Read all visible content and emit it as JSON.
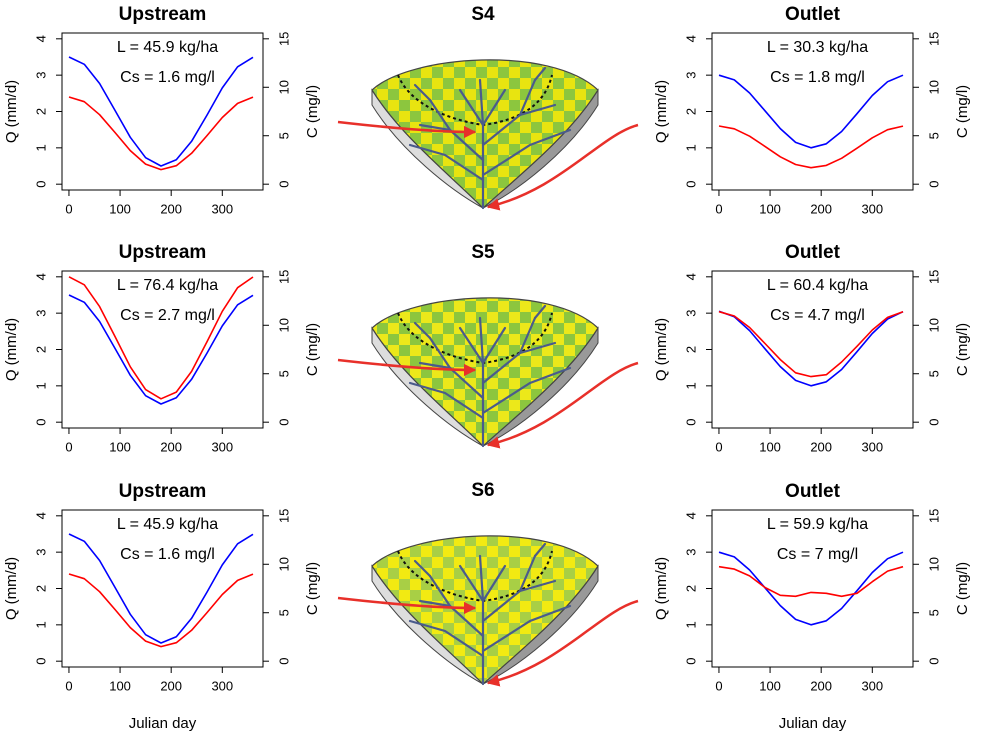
{
  "chart_data": [
    {
      "type": "line",
      "title": "Upstream",
      "annotations": [
        "L = 45.9 kg/ha",
        "Cs = 1.6 mg/l"
      ],
      "ylabel": "Q (mm/d)",
      "y2label": "C (mg/l)",
      "x": [
        0,
        30,
        60,
        90,
        120,
        150,
        180,
        210,
        240,
        270,
        300,
        330,
        360
      ],
      "series": [
        {
          "color": "#0000ff",
          "values": [
            3.5,
            3.3,
            2.77,
            2.03,
            1.29,
            0.73,
            0.5,
            0.67,
            1.18,
            1.9,
            2.65,
            3.23,
            3.49
          ]
        },
        {
          "color": "#ff0000",
          "axis": "y2",
          "values": [
            9.0,
            8.51,
            7.17,
            5.33,
            3.47,
            2.07,
            1.5,
            1.91,
            3.19,
            5.01,
            6.88,
            8.34,
            8.99
          ]
        }
      ],
      "xlim": [
        -13.6,
        379.6
      ],
      "xticks": [
        0,
        100,
        200,
        300
      ],
      "ylim": [
        -0.16,
        4.16
      ],
      "yticks": [
        0,
        1,
        2,
        3,
        4
      ],
      "y2lim": [
        -0.6,
        15.6
      ],
      "y2ticks": [
        0,
        5,
        10,
        15
      ]
    },
    {
      "type": "line",
      "title": "Outlet",
      "annotations": [
        "L = 30.3 kg/ha",
        "Cs = 1.8 mg/l"
      ],
      "ylabel": "Q (mm/d)",
      "y2label": "C (mg/l)",
      "x": [
        0,
        30,
        60,
        90,
        120,
        150,
        180,
        210,
        240,
        270,
        300,
        330,
        360
      ],
      "series": [
        {
          "color": "#0000ff",
          "values": [
            3.0,
            2.87,
            2.51,
            2.02,
            1.53,
            1.15,
            1.0,
            1.11,
            1.45,
            1.94,
            2.44,
            2.82,
            3.0
          ]
        },
        {
          "color": "#ff0000",
          "axis": "y2",
          "values": [
            6.0,
            5.72,
            4.95,
            3.9,
            2.83,
            2.03,
            1.7,
            1.94,
            2.67,
            3.71,
            4.79,
            5.62,
            5.99
          ]
        }
      ],
      "xlim": [
        -13.6,
        379.6
      ],
      "xticks": [
        0,
        100,
        200,
        300
      ],
      "ylim": [
        -0.16,
        4.16
      ],
      "yticks": [
        0,
        1,
        2,
        3,
        4
      ],
      "y2lim": [
        -0.6,
        15.6
      ],
      "y2ticks": [
        0,
        5,
        10,
        15
      ]
    },
    {
      "type": "line",
      "title": "Upstream",
      "annotations": [
        "L = 76.4 kg/ha",
        "Cs = 2.7 mg/l"
      ],
      "ylabel": "Q (mm/d)",
      "y2label": "C (mg/l)",
      "x": [
        0,
        30,
        60,
        90,
        120,
        150,
        180,
        210,
        240,
        270,
        300,
        330,
        360
      ],
      "series": [
        {
          "color": "#0000ff",
          "values": [
            3.5,
            3.3,
            2.77,
            2.03,
            1.29,
            0.73,
            0.5,
            0.67,
            1.18,
            1.9,
            2.65,
            3.23,
            3.49
          ]
        },
        {
          "color": "#ff0000",
          "axis": "y2",
          "values": [
            15.0,
            14.18,
            11.93,
            8.84,
            5.71,
            3.36,
            2.41,
            3.1,
            5.24,
            8.29,
            11.44,
            13.88,
            14.98
          ]
        }
      ],
      "xlim": [
        -13.6,
        379.6
      ],
      "xticks": [
        0,
        100,
        200,
        300
      ],
      "ylim": [
        -0.16,
        4.16
      ],
      "yticks": [
        0,
        1,
        2,
        3,
        4
      ],
      "y2lim": [
        -0.6,
        15.6
      ],
      "y2ticks": [
        0,
        5,
        10,
        15
      ]
    },
    {
      "type": "line",
      "title": "Outlet",
      "annotations": [
        "L = 60.4 kg/ha",
        "Cs = 4.7 mg/l"
      ],
      "ylabel": "Q (mm/d)",
      "y2label": "C (mg/l)",
      "x": [
        0,
        30,
        60,
        90,
        120,
        150,
        180,
        210,
        240,
        270,
        300,
        330,
        360
      ],
      "series": [
        {
          "color": "#0000ff",
          "values": [
            3.05,
            2.9,
            2.52,
            2.02,
            1.53,
            1.15,
            1.0,
            1.11,
            1.45,
            1.94,
            2.44,
            2.84,
            3.04
          ]
        },
        {
          "color": "#ff0000",
          "axis": "y2",
          "values": [
            11.4,
            10.96,
            9.77,
            8.12,
            6.46,
            5.1,
            4.7,
            4.9,
            6.21,
            7.83,
            9.51,
            10.81,
            11.39
          ]
        }
      ],
      "xlim": [
        -13.6,
        379.6
      ],
      "xticks": [
        0,
        100,
        200,
        300
      ],
      "ylim": [
        -0.16,
        4.16
      ],
      "yticks": [
        0,
        1,
        2,
        3,
        4
      ],
      "y2lim": [
        -0.6,
        15.6
      ],
      "y2ticks": [
        0,
        5,
        10,
        15
      ]
    },
    {
      "type": "line",
      "title": "Upstream",
      "annotations": [
        "L = 45.9 kg/ha",
        "Cs = 1.6 mg/l"
      ],
      "ylabel": "Q (mm/d)",
      "y2label": "C (mg/l)",
      "xlabel": "Julian day",
      "x": [
        0,
        30,
        60,
        90,
        120,
        150,
        180,
        210,
        240,
        270,
        300,
        330,
        360
      ],
      "series": [
        {
          "color": "#0000ff",
          "values": [
            3.5,
            3.3,
            2.77,
            2.03,
            1.29,
            0.73,
            0.5,
            0.67,
            1.18,
            1.9,
            2.65,
            3.23,
            3.49
          ]
        },
        {
          "color": "#ff0000",
          "axis": "y2",
          "values": [
            9.0,
            8.51,
            7.17,
            5.33,
            3.47,
            2.07,
            1.5,
            1.91,
            3.19,
            5.01,
            6.88,
            8.34,
            8.99
          ]
        }
      ],
      "xlim": [
        -13.6,
        379.6
      ],
      "xticks": [
        0,
        100,
        200,
        300
      ],
      "ylim": [
        -0.16,
        4.16
      ],
      "yticks": [
        0,
        1,
        2,
        3,
        4
      ],
      "y2lim": [
        -0.6,
        15.6
      ],
      "y2ticks": [
        0,
        5,
        10,
        15
      ]
    },
    {
      "type": "line",
      "title": "Outlet",
      "annotations": [
        "L = 59.9 kg/ha",
        "Cs = 7 mg/l"
      ],
      "ylabel": "Q (mm/d)",
      "y2label": "C (mg/l)",
      "xlabel": "Julian day",
      "x": [
        0,
        30,
        60,
        90,
        120,
        150,
        180,
        210,
        240,
        270,
        300,
        330,
        360
      ],
      "series": [
        {
          "color": "#0000ff",
          "values": [
            3.0,
            2.87,
            2.51,
            2.02,
            1.53,
            1.15,
            1.0,
            1.11,
            1.45,
            1.94,
            2.44,
            2.82,
            3.0
          ]
        },
        {
          "color": "#ff0000",
          "axis": "y2",
          "values": [
            9.75,
            9.5,
            8.8,
            7.6,
            6.8,
            6.7,
            7.1,
            7.0,
            6.7,
            7.0,
            8.2,
            9.3,
            9.75
          ]
        }
      ],
      "xlim": [
        -13.6,
        379.6
      ],
      "xticks": [
        0,
        100,
        200,
        300
      ],
      "ylim": [
        -0.16,
        4.16
      ],
      "yticks": [
        0,
        1,
        2,
        3,
        4
      ],
      "y2lim": [
        -0.6,
        15.6
      ],
      "y2ticks": [
        0,
        5,
        10,
        15
      ]
    }
  ],
  "diagrams": [
    {
      "title": "S4",
      "base": "#8cc63e",
      "check": "#e8e410"
    },
    {
      "title": "S5",
      "base": "#ece81a",
      "check": "#8cc63e"
    },
    {
      "title": "S6",
      "base": "#f2ea12",
      "check": "#a8cf45"
    }
  ]
}
